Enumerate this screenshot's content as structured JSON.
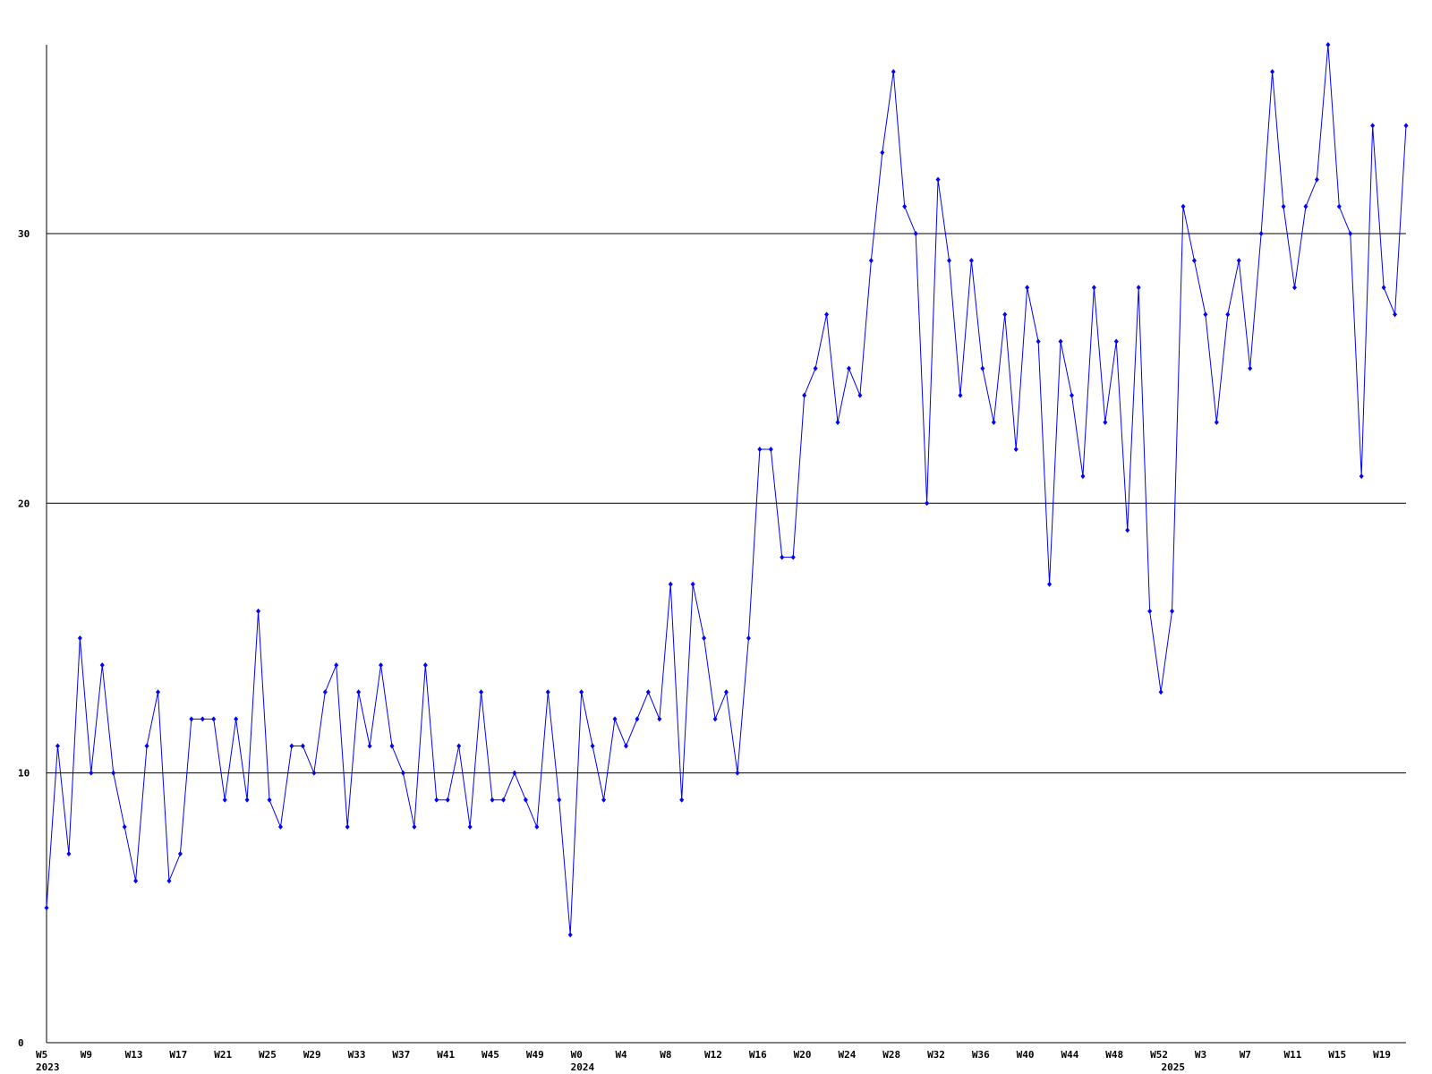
{
  "chart_data": {
    "type": "line",
    "categories": [
      "W5",
      null,
      null,
      null,
      "W9",
      null,
      null,
      null,
      "W13",
      null,
      null,
      null,
      "W17",
      null,
      null,
      null,
      "W21",
      null,
      null,
      null,
      "W25",
      null,
      null,
      null,
      "W29",
      null,
      null,
      null,
      "W33",
      null,
      null,
      null,
      "W37",
      null,
      null,
      null,
      "W41",
      null,
      null,
      null,
      "W45",
      null,
      null,
      null,
      "W49",
      null,
      null,
      null,
      "W0",
      null,
      null,
      null,
      "W4",
      null,
      null,
      null,
      "W8",
      null,
      null,
      null,
      "W12",
      null,
      null,
      null,
      "W16",
      null,
      null,
      null,
      "W20",
      null,
      null,
      null,
      "W24",
      null,
      null,
      null,
      "W28",
      null,
      null,
      null,
      "W32",
      null,
      null,
      null,
      "W36",
      null,
      null,
      null,
      "W40",
      null,
      null,
      null,
      "W44",
      null,
      null,
      null,
      "W48",
      null,
      null,
      null,
      "W52",
      null,
      null,
      null,
      "W3",
      null,
      null,
      null,
      "W7",
      null,
      null,
      null,
      "W11",
      null,
      null,
      null,
      "W15",
      null,
      null,
      null,
      "W19",
      null,
      null
    ],
    "year_labels": [
      "2023",
      null,
      null,
      null,
      null,
      null,
      null,
      null,
      null,
      null,
      null,
      null,
      null,
      null,
      null,
      null,
      null,
      null,
      null,
      null,
      null,
      null,
      null,
      null,
      null,
      null,
      null,
      null,
      null,
      null,
      null,
      null,
      null,
      null,
      null,
      null,
      null,
      null,
      null,
      null,
      null,
      null,
      null,
      null,
      null,
      null,
      null,
      null,
      "2024",
      null,
      null,
      null,
      null,
      null,
      null,
      null,
      null,
      null,
      null,
      null,
      null,
      null,
      null,
      null,
      null,
      null,
      null,
      null,
      null,
      null,
      null,
      null,
      null,
      null,
      null,
      null,
      null,
      null,
      null,
      null,
      null,
      null,
      null,
      null,
      null,
      null,
      null,
      null,
      null,
      null,
      null,
      null,
      null,
      null,
      null,
      null,
      null,
      null,
      null,
      null,
      null,
      "2025",
      null,
      null,
      null,
      null,
      null,
      null,
      null,
      null,
      null,
      null,
      null,
      null,
      null,
      null,
      null,
      null,
      null,
      null,
      null,
      null
    ],
    "series": [
      {
        "color": "#0000ff",
        "values": [
          5,
          11,
          7,
          15,
          10,
          14,
          10,
          8,
          6,
          11,
          13,
          6,
          7,
          12,
          12,
          12,
          9,
          12,
          9,
          16,
          9,
          8,
          11,
          11,
          10,
          13,
          14,
          8,
          13,
          11,
          14,
          11,
          10,
          8,
          14,
          9,
          9,
          11,
          8,
          13,
          9,
          9,
          10,
          9,
          8,
          13,
          9,
          4,
          13,
          11,
          9,
          12,
          11,
          12,
          13,
          12,
          17,
          9,
          17,
          15,
          12,
          13,
          10,
          15,
          22,
          22,
          18,
          18,
          24,
          25,
          27,
          23,
          25,
          24,
          29,
          33,
          36,
          31,
          30,
          20,
          32,
          29,
          24,
          29,
          25,
          23,
          27,
          22,
          28,
          26,
          17,
          26,
          24,
          21,
          28,
          23,
          26,
          19,
          28,
          16,
          13,
          16,
          31,
          29,
          27,
          23,
          27,
          29,
          25,
          30,
          36,
          31,
          28,
          31,
          32,
          37,
          31,
          30,
          21,
          34,
          28,
          27,
          34
        ]
      }
    ],
    "ylim": [
      0,
      37
    ],
    "yticks": [
      0,
      10,
      20,
      30
    ],
    "grid": true
  }
}
